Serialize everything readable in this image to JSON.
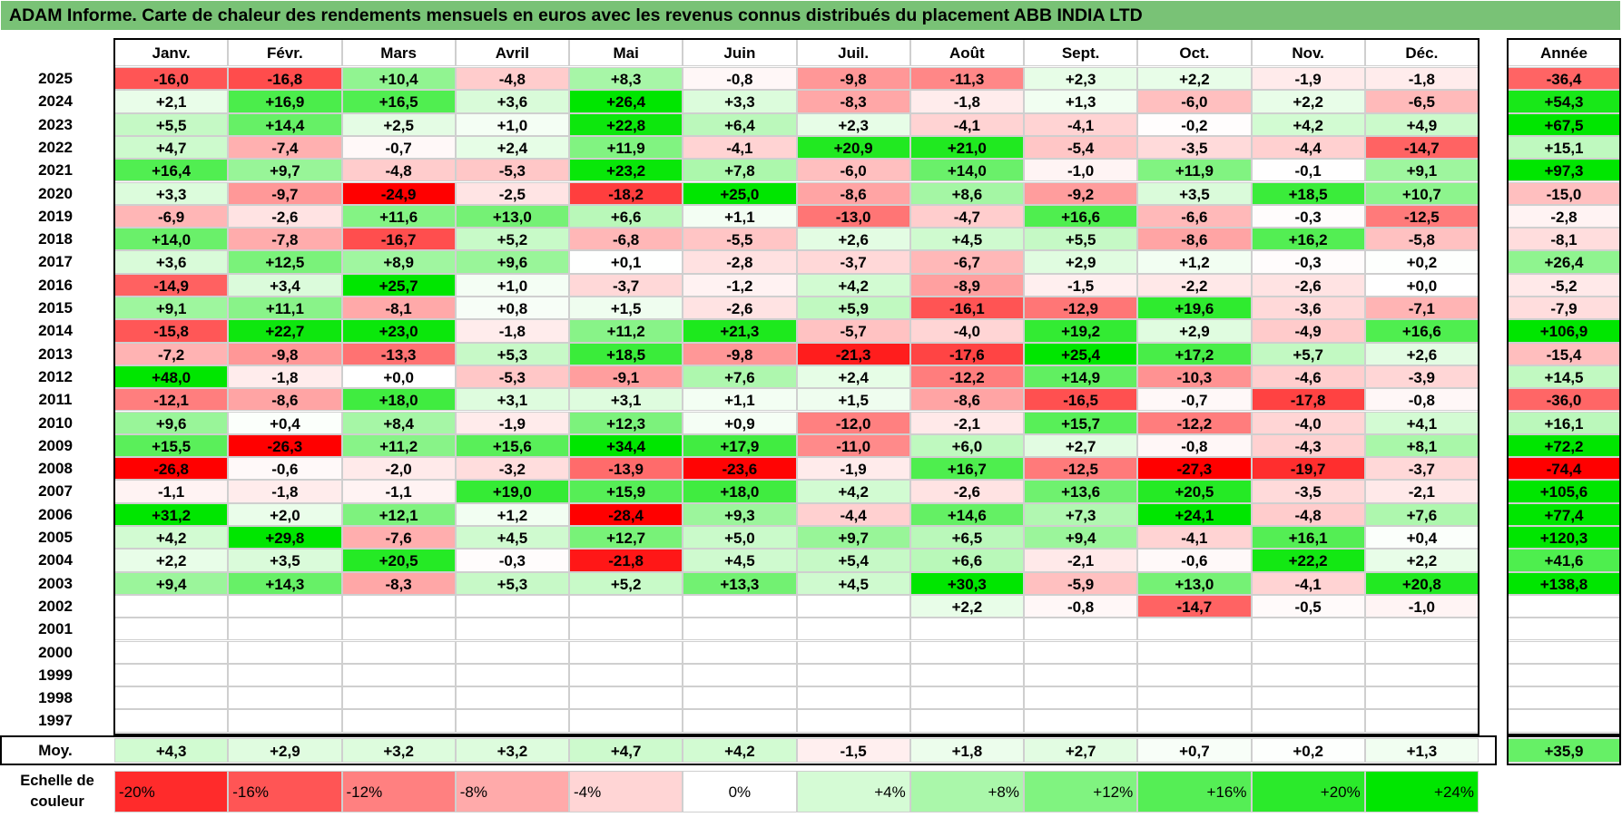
{
  "title": "ADAM Informe. Carte de chaleur des rendements mensuels en euros avec les revenus connus distribués du placement ABB INDIA LTD",
  "chart_data": {
    "type": "heatmap",
    "title": "ADAM Informe. Carte de chaleur des rendements mensuels en euros avec les revenus connus distribués du placement ABB INDIA LTD",
    "columns": [
      "Janv.",
      "Févr.",
      "Mars",
      "Avril",
      "Mai",
      "Juin",
      "Juil.",
      "Août",
      "Sept.",
      "Oct.",
      "Nov.",
      "Déc."
    ],
    "year_header": "Année",
    "rows": [
      {
        "year": "2025",
        "values": [
          "-16,0",
          "-16,8",
          "+10,4",
          "-4,8",
          "+8,3",
          "-0,8",
          "-9,8",
          "-11,3",
          "+2,3",
          "+2,2",
          "-1,9",
          "-1,8"
        ],
        "annual": "-36,4"
      },
      {
        "year": "2024",
        "values": [
          "+2,1",
          "+16,9",
          "+16,5",
          "+3,6",
          "+26,4",
          "+3,3",
          "-8,3",
          "-1,8",
          "+1,3",
          "-6,0",
          "+2,2",
          "-6,5"
        ],
        "annual": "+54,3"
      },
      {
        "year": "2023",
        "values": [
          "+5,5",
          "+14,4",
          "+2,5",
          "+1,0",
          "+22,8",
          "+6,4",
          "+2,3",
          "-4,1",
          "-4,1",
          "-0,2",
          "+4,2",
          "+4,9"
        ],
        "annual": "+67,5"
      },
      {
        "year": "2022",
        "values": [
          "+4,7",
          "-7,4",
          "-0,7",
          "+2,4",
          "+11,9",
          "-4,1",
          "+20,9",
          "+21,0",
          "-5,4",
          "-3,5",
          "-4,4",
          "-14,7"
        ],
        "annual": "+15,1"
      },
      {
        "year": "2021",
        "values": [
          "+16,4",
          "+9,7",
          "-4,8",
          "-5,3",
          "+23,2",
          "+7,8",
          "-6,0",
          "+14,0",
          "-1,0",
          "+11,9",
          "-0,1",
          "+9,1"
        ],
        "annual": "+97,3"
      },
      {
        "year": "2020",
        "values": [
          "+3,3",
          "-9,7",
          "-24,9",
          "-2,5",
          "-18,2",
          "+25,0",
          "-8,6",
          "+8,6",
          "-9,2",
          "+3,5",
          "+18,5",
          "+10,7"
        ],
        "annual": "-15,0"
      },
      {
        "year": "2019",
        "values": [
          "-6,9",
          "-2,6",
          "+11,6",
          "+13,0",
          "+6,6",
          "+1,1",
          "-13,0",
          "-4,7",
          "+16,6",
          "-6,6",
          "-0,3",
          "-12,5"
        ],
        "annual": "-2,8"
      },
      {
        "year": "2018",
        "values": [
          "+14,0",
          "-7,8",
          "-16,7",
          "+5,2",
          "-6,8",
          "-5,5",
          "+2,6",
          "+4,5",
          "+5,5",
          "-8,6",
          "+16,2",
          "-5,8"
        ],
        "annual": "-8,1"
      },
      {
        "year": "2017",
        "values": [
          "+3,6",
          "+12,5",
          "+8,9",
          "+9,6",
          "+0,1",
          "-2,8",
          "-3,7",
          "-6,7",
          "+2,9",
          "+1,2",
          "-0,3",
          "+0,2"
        ],
        "annual": "+26,4"
      },
      {
        "year": "2016",
        "values": [
          "-14,9",
          "+3,4",
          "+25,7",
          "+1,0",
          "-3,7",
          "-1,2",
          "+4,2",
          "-8,9",
          "-1,5",
          "-2,2",
          "-2,6",
          "+0,0"
        ],
        "annual": "-5,2"
      },
      {
        "year": "2015",
        "values": [
          "+9,1",
          "+11,1",
          "-8,1",
          "+0,8",
          "+1,5",
          "-2,6",
          "+5,9",
          "-16,1",
          "-12,9",
          "+19,6",
          "-3,6",
          "-7,1"
        ],
        "annual": "-7,9"
      },
      {
        "year": "2014",
        "values": [
          "-15,8",
          "+22,7",
          "+23,0",
          "-1,8",
          "+11,2",
          "+21,3",
          "-5,7",
          "-4,0",
          "+19,2",
          "+2,9",
          "-4,9",
          "+16,6"
        ],
        "annual": "+106,9"
      },
      {
        "year": "2013",
        "values": [
          "-7,2",
          "-9,8",
          "-13,3",
          "+5,3",
          "+18,5",
          "-9,8",
          "-21,3",
          "-17,6",
          "+25,4",
          "+17,2",
          "+5,7",
          "+2,6"
        ],
        "annual": "-15,4"
      },
      {
        "year": "2012",
        "values": [
          "+48,0",
          "-1,8",
          "+0,0",
          "-5,3",
          "-9,1",
          "+7,6",
          "+2,4",
          "-12,2",
          "+14,9",
          "-10,3",
          "-4,6",
          "-3,9"
        ],
        "annual": "+14,5"
      },
      {
        "year": "2011",
        "values": [
          "-12,1",
          "-8,6",
          "+18,0",
          "+3,1",
          "+3,1",
          "+1,1",
          "+1,5",
          "-8,6",
          "-16,5",
          "-0,7",
          "-17,8",
          "-0,8"
        ],
        "annual": "-36,0"
      },
      {
        "year": "2010",
        "values": [
          "+9,6",
          "+0,4",
          "+8,4",
          "-1,9",
          "+12,3",
          "+0,9",
          "-12,0",
          "-2,1",
          "+15,7",
          "-12,2",
          "-4,0",
          "+4,1"
        ],
        "annual": "+16,1"
      },
      {
        "year": "2009",
        "values": [
          "+15,5",
          "-26,3",
          "+11,2",
          "+15,6",
          "+34,4",
          "+17,9",
          "-11,0",
          "+6,0",
          "+2,7",
          "-0,8",
          "-4,3",
          "+8,1"
        ],
        "annual": "+72,2"
      },
      {
        "year": "2008",
        "values": [
          "-26,8",
          "-0,6",
          "-2,0",
          "-3,2",
          "-13,9",
          "-23,6",
          "-1,9",
          "+16,7",
          "-12,5",
          "-27,3",
          "-19,7",
          "-3,7"
        ],
        "annual": "-74,4"
      },
      {
        "year": "2007",
        "values": [
          "-1,1",
          "-1,8",
          "-1,1",
          "+19,0",
          "+15,9",
          "+18,0",
          "+4,2",
          "-2,6",
          "+13,6",
          "+20,5",
          "-3,5",
          "-2,1"
        ],
        "annual": "+105,6"
      },
      {
        "year": "2006",
        "values": [
          "+31,2",
          "+2,0",
          "+12,1",
          "+1,2",
          "-28,4",
          "+9,3",
          "-4,4",
          "+14,6",
          "+7,3",
          "+24,1",
          "-4,8",
          "+7,6"
        ],
        "annual": "+77,4"
      },
      {
        "year": "2005",
        "values": [
          "+4,2",
          "+29,8",
          "-7,6",
          "+4,5",
          "+12,7",
          "+5,0",
          "+9,7",
          "+6,5",
          "+9,4",
          "-4,1",
          "+16,1",
          "+0,4"
        ],
        "annual": "+120,3"
      },
      {
        "year": "2004",
        "values": [
          "+2,2",
          "+3,5",
          "+20,5",
          "-0,3",
          "-21,8",
          "+4,5",
          "+5,4",
          "+6,6",
          "-2,1",
          "-0,6",
          "+22,2",
          "+2,2"
        ],
        "annual": "+41,6"
      },
      {
        "year": "2003",
        "values": [
          "+9,4",
          "+14,3",
          "-8,3",
          "+5,3",
          "+5,2",
          "+13,3",
          "+4,5",
          "+30,3",
          "-5,9",
          "+13,0",
          "-4,1",
          "+20,8"
        ],
        "annual": "+138,8"
      },
      {
        "year": "2002",
        "values": [
          "",
          "",
          "",
          "",
          "",
          "",
          "",
          "+2,2",
          "-0,8",
          "-14,7",
          "-0,5",
          "-1,0"
        ],
        "annual": ""
      },
      {
        "year": "2001",
        "values": [
          "",
          "",
          "",
          "",
          "",
          "",
          "",
          "",
          "",
          "",
          "",
          ""
        ],
        "annual": ""
      },
      {
        "year": "2000",
        "values": [
          "",
          "",
          "",
          "",
          "",
          "",
          "",
          "",
          "",
          "",
          "",
          ""
        ],
        "annual": ""
      },
      {
        "year": "1999",
        "values": [
          "",
          "",
          "",
          "",
          "",
          "",
          "",
          "",
          "",
          "",
          "",
          ""
        ],
        "annual": ""
      },
      {
        "year": "1998",
        "values": [
          "",
          "",
          "",
          "",
          "",
          "",
          "",
          "",
          "",
          "",
          "",
          ""
        ],
        "annual": ""
      },
      {
        "year": "1997",
        "values": [
          "",
          "",
          "",
          "",
          "",
          "",
          "",
          "",
          "",
          "",
          "",
          ""
        ],
        "annual": ""
      }
    ],
    "average": {
      "label": "Moy.",
      "values": [
        "+4,3",
        "+2,9",
        "+3,2",
        "+3,2",
        "+4,7",
        "+4,2",
        "-1,5",
        "+1,8",
        "+2,7",
        "+0,7",
        "+0,2",
        "+1,3"
      ],
      "annual": "+35,9"
    },
    "color_scale": {
      "label": "Echelle de couleur",
      "stops": [
        "-20%",
        "-16%",
        "-12%",
        "-8%",
        "-4%",
        "0%",
        "+4%",
        "+8%",
        "+12%",
        "+16%",
        "+20%",
        "+24%"
      ],
      "negative_color": "#ff0000",
      "positive_color": "#00e600",
      "neutral_color": "#ffffff"
    }
  }
}
